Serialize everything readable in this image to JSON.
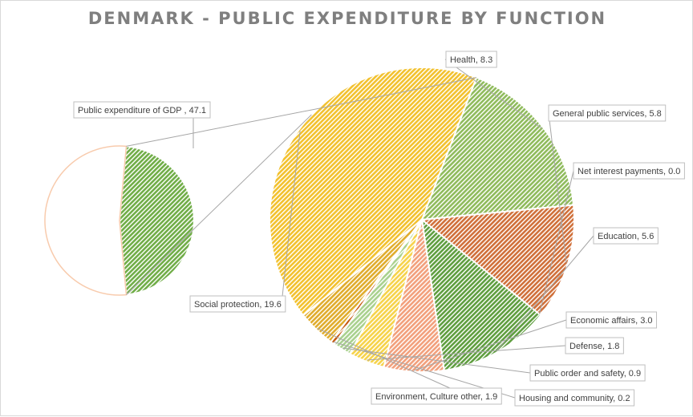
{
  "chart_data": {
    "type": "pie",
    "subtype": "pie-of-pie",
    "title": "DENMARK - PUBLIC EXPENDITURE BY FUNCTION",
    "main_pie": {
      "slices": [
        {
          "name": "Public expenditure of GDP",
          "value": 47.1,
          "label": "Public expenditure of GDP , 47.1",
          "color": "#70ad47"
        },
        {
          "name": "Remainder",
          "value": 52.9,
          "label": "",
          "color": "#ffffff"
        }
      ]
    },
    "breakdown_pie": {
      "slices": [
        {
          "name": "Health",
          "value": 8.3,
          "label": "Health, 8.3",
          "color": "#8fbb5c"
        },
        {
          "name": "General public services",
          "value": 5.8,
          "label": "General public services, 5.8",
          "color": "#d0703a"
        },
        {
          "name": "Net interest payments",
          "value": 0.0,
          "label": "Net interest payments, 0.0",
          "color": "#c9c9c9"
        },
        {
          "name": "Education",
          "value": 5.6,
          "label": "Education, 5.6",
          "color": "#5f9e3f"
        },
        {
          "name": "Economic affairs",
          "value": 3.0,
          "label": "Economic affairs, 3.0",
          "color": "#f2a07c"
        },
        {
          "name": "Defense",
          "value": 1.8,
          "label": "Defense, 1.8",
          "color": "#f6d34a"
        },
        {
          "name": "Public order and safety",
          "value": 0.9,
          "label": "Public order and safety, 0.9",
          "color": "#a9d18e"
        },
        {
          "name": "Housing and community",
          "value": 0.2,
          "label": "Housing and community, 0.2",
          "color": "#c55a11"
        },
        {
          "name": "Environment, Culture other",
          "value": 1.9,
          "label": "Environment, Culture other, 1.9",
          "color": "#e0ac2c"
        },
        {
          "name": "Social protection",
          "value": 19.6,
          "label": "Social protection, 19.6",
          "color": "#f2c12e"
        }
      ]
    },
    "legend": "none"
  }
}
